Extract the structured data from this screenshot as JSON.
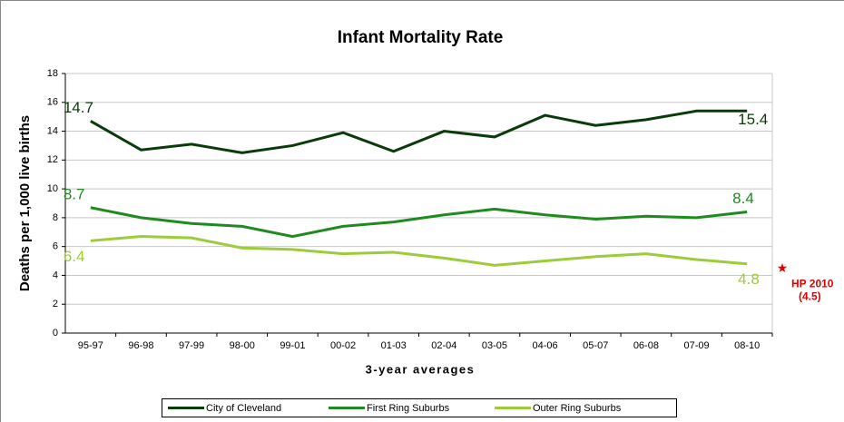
{
  "chart_data": {
    "type": "line",
    "title": "Infant Mortality Rate",
    "x_label": "3-year averages",
    "y_label": "Deaths per 1,000 live births",
    "categories": [
      "95-97",
      "96-98",
      "97-99",
      "98-00",
      "99-01",
      "00-02",
      "01-03",
      "02-04",
      "03-05",
      "04-06",
      "05-07",
      "06-08",
      "07-09",
      "08-10"
    ],
    "series": [
      {
        "name": "City of Cleveland",
        "color": "#0a3b0a",
        "values": [
          14.7,
          12.7,
          13.1,
          12.5,
          13.0,
          13.9,
          12.6,
          14.0,
          13.6,
          15.1,
          14.4,
          14.8,
          15.4,
          15.4
        ]
      },
      {
        "name": "First Ring Suburbs",
        "color": "#1f8a1f",
        "values": [
          8.7,
          8.0,
          7.6,
          7.4,
          6.7,
          7.4,
          7.7,
          8.2,
          8.6,
          8.2,
          7.9,
          8.1,
          8.0,
          8.4
        ]
      },
      {
        "name": "Outer Ring Suburbs",
        "color": "#9ccc3a",
        "values": [
          6.4,
          6.7,
          6.6,
          5.9,
          5.8,
          5.5,
          5.6,
          5.2,
          4.7,
          5.0,
          5.3,
          5.5,
          5.1,
          4.8
        ]
      }
    ],
    "target": {
      "label": "HP 2010",
      "value": 4.5,
      "value_label": "(4.5)",
      "color": "#e00000"
    },
    "ylim": [
      0,
      18
    ],
    "yticks": [
      0,
      2,
      4,
      6,
      8,
      10,
      12,
      14,
      16,
      18
    ],
    "grid": true,
    "legend": "bottom"
  }
}
